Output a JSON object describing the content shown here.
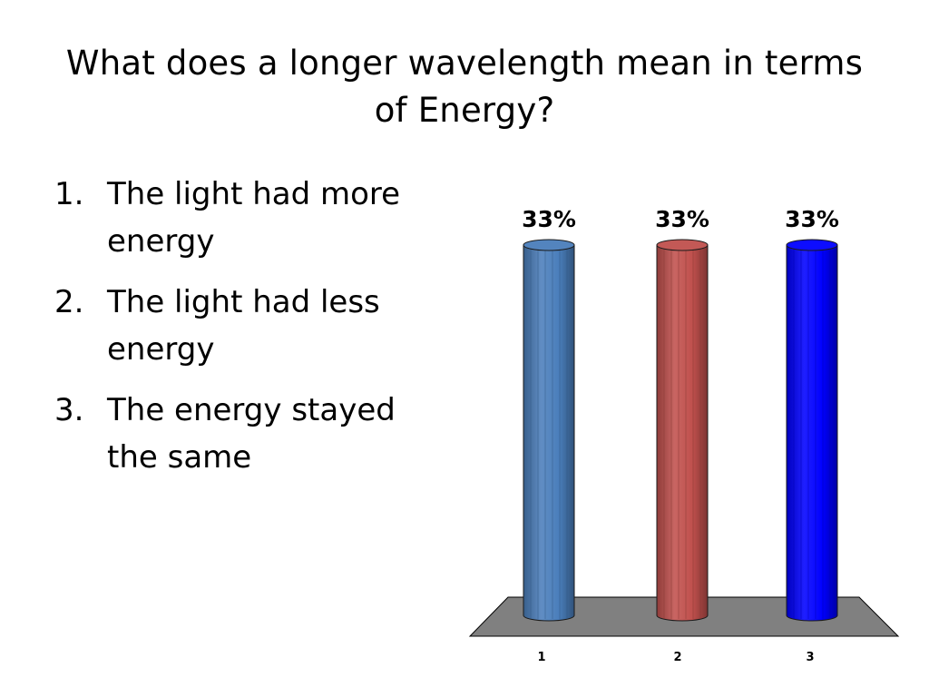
{
  "slide": {
    "title": "What does a longer wavelength mean in terms of Energy?",
    "options": [
      {
        "number": "1.",
        "text": "The light had more energy"
      },
      {
        "number": "2.",
        "text": "The light had less energy"
      },
      {
        "number": "3.",
        "text": "The energy stayed the same"
      }
    ]
  },
  "chart_data": {
    "type": "bar",
    "categories": [
      "1",
      "2",
      "3"
    ],
    "values": [
      33,
      33,
      33
    ],
    "data_labels": [
      "33%",
      "33%",
      "33%"
    ],
    "colors": [
      "#4a7ebb",
      "#c0504d",
      "#0000ff"
    ],
    "floor_color": "#808080",
    "ylim": [
      0,
      33
    ],
    "grid": false,
    "legend": "none"
  }
}
